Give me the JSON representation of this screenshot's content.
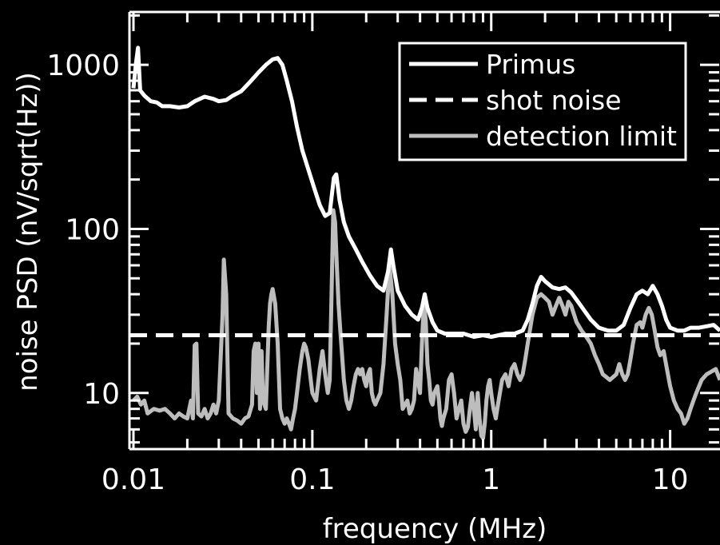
{
  "chart_data": {
    "type": "line",
    "title": "",
    "xlabel": "frequency (MHz)",
    "ylabel": "noise PSD (nV/sqrt(Hz))",
    "xscale": "log",
    "yscale": "log",
    "xlim": [
      0.0095,
      19
    ],
    "ylim": [
      4.55,
      2100
    ],
    "grid": false,
    "legend_position": "top-right",
    "x_tick_labels": [
      {
        "value": 0.01,
        "label": "0.01"
      },
      {
        "value": 0.1,
        "label": "0.1"
      },
      {
        "value": 1,
        "label": "1"
      },
      {
        "value": 10,
        "label": "10"
      }
    ],
    "y_tick_labels": [
      {
        "value": 10,
        "label": "10"
      },
      {
        "value": 100,
        "label": "100"
      },
      {
        "value": 1000,
        "label": "1000"
      }
    ],
    "series": [
      {
        "name": "Primus",
        "style": "solid",
        "color": "#ffffff",
        "points": [
          [
            0.01,
            720
          ],
          [
            0.0103,
            1000
          ],
          [
            0.0106,
            1270
          ],
          [
            0.0109,
            700
          ],
          [
            0.0115,
            650
          ],
          [
            0.0125,
            600
          ],
          [
            0.0135,
            590
          ],
          [
            0.0145,
            560
          ],
          [
            0.016,
            560
          ],
          [
            0.018,
            550
          ],
          [
            0.02,
            560
          ],
          [
            0.022,
            600
          ],
          [
            0.025,
            640
          ],
          [
            0.028,
            620
          ],
          [
            0.03,
            600
          ],
          [
            0.033,
            610
          ],
          [
            0.036,
            650
          ],
          [
            0.04,
            690
          ],
          [
            0.045,
            790
          ],
          [
            0.05,
            900
          ],
          [
            0.055,
            1000
          ],
          [
            0.06,
            1080
          ],
          [
            0.064,
            1100
          ],
          [
            0.068,
            1000
          ],
          [
            0.072,
            800
          ],
          [
            0.077,
            600
          ],
          [
            0.082,
            420
          ],
          [
            0.088,
            300
          ],
          [
            0.095,
            230
          ],
          [
            0.102,
            180
          ],
          [
            0.11,
            140
          ],
          [
            0.118,
            120
          ],
          [
            0.125,
            125
          ],
          [
            0.132,
            205
          ],
          [
            0.136,
            215
          ],
          [
            0.142,
            150
          ],
          [
            0.15,
            110
          ],
          [
            0.16,
            90
          ],
          [
            0.175,
            75
          ],
          [
            0.19,
            63
          ],
          [
            0.21,
            52
          ],
          [
            0.23,
            45
          ],
          [
            0.25,
            42
          ],
          [
            0.265,
            55
          ],
          [
            0.275,
            75
          ],
          [
            0.285,
            58
          ],
          [
            0.3,
            42
          ],
          [
            0.33,
            34
          ],
          [
            0.36,
            30
          ],
          [
            0.39,
            28
          ],
          [
            0.41,
            33
          ],
          [
            0.425,
            40
          ],
          [
            0.44,
            33
          ],
          [
            0.47,
            27
          ],
          [
            0.5,
            24
          ],
          [
            0.55,
            23
          ],
          [
            0.62,
            23
          ],
          [
            0.7,
            23
          ],
          [
            0.8,
            22
          ],
          [
            0.9,
            22.5
          ],
          [
            1.0,
            22
          ],
          [
            1.1,
            22.5
          ],
          [
            1.2,
            23
          ],
          [
            1.35,
            23
          ],
          [
            1.5,
            24
          ],
          [
            1.6,
            28
          ],
          [
            1.7,
            35
          ],
          [
            1.8,
            45
          ],
          [
            1.9,
            51
          ],
          [
            2.0,
            48
          ],
          [
            2.2,
            44
          ],
          [
            2.4,
            43
          ],
          [
            2.6,
            44
          ],
          [
            2.8,
            41
          ],
          [
            3.0,
            37
          ],
          [
            3.3,
            32
          ],
          [
            3.6,
            28
          ],
          [
            4.0,
            25
          ],
          [
            4.5,
            24
          ],
          [
            5.0,
            24
          ],
          [
            5.5,
            26
          ],
          [
            6.0,
            33
          ],
          [
            6.5,
            40
          ],
          [
            7.0,
            42
          ],
          [
            7.5,
            40
          ],
          [
            8.0,
            45
          ],
          [
            8.5,
            40
          ],
          [
            9.0,
            34
          ],
          [
            9.5,
            28
          ],
          [
            10.0,
            25
          ],
          [
            11.0,
            24
          ],
          [
            12.0,
            24
          ],
          [
            13.0,
            25
          ],
          [
            14.5,
            25
          ],
          [
            16.0,
            25.5
          ],
          [
            17.5,
            26
          ],
          [
            19.0,
            24
          ]
        ]
      },
      {
        "name": "shot noise",
        "style": "dashed",
        "color": "#ffffff",
        "points": [
          [
            0.0095,
            22.5
          ],
          [
            19.0,
            22.5
          ]
        ]
      },
      {
        "name": "detection limit",
        "style": "solid",
        "color": "#bdbdbd",
        "points": [
          [
            0.01,
            9
          ],
          [
            0.0105,
            9.5
          ],
          [
            0.011,
            8.5
          ],
          [
            0.0115,
            9
          ],
          [
            0.012,
            7.5
          ],
          [
            0.013,
            8
          ],
          [
            0.014,
            7.8
          ],
          [
            0.015,
            8
          ],
          [
            0.016,
            7.5
          ],
          [
            0.017,
            7
          ],
          [
            0.018,
            7.5
          ],
          [
            0.019,
            7.2
          ],
          [
            0.02,
            7
          ],
          [
            0.021,
            9
          ],
          [
            0.0215,
            7
          ],
          [
            0.022,
            19.5
          ],
          [
            0.0225,
            20
          ],
          [
            0.023,
            7.5
          ],
          [
            0.024,
            7.2
          ],
          [
            0.025,
            8
          ],
          [
            0.026,
            7
          ],
          [
            0.027,
            7.5
          ],
          [
            0.028,
            8.5
          ],
          [
            0.029,
            7.5
          ],
          [
            0.03,
            9
          ],
          [
            0.0315,
            30
          ],
          [
            0.032,
            65
          ],
          [
            0.033,
            40
          ],
          [
            0.034,
            7.5
          ],
          [
            0.036,
            7
          ],
          [
            0.038,
            6.8
          ],
          [
            0.04,
            6.5
          ],
          [
            0.042,
            7
          ],
          [
            0.044,
            7.2
          ],
          [
            0.046,
            8.5
          ],
          [
            0.047,
            18
          ],
          [
            0.048,
            20
          ],
          [
            0.049,
            10
          ],
          [
            0.05,
            20
          ],
          [
            0.051,
            8
          ],
          [
            0.052,
            18
          ],
          [
            0.053,
            9
          ],
          [
            0.055,
            8
          ],
          [
            0.057,
            25
          ],
          [
            0.058,
            35
          ],
          [
            0.059,
            40
          ],
          [
            0.06,
            43
          ],
          [
            0.062,
            35
          ],
          [
            0.064,
            20
          ],
          [
            0.066,
            8
          ],
          [
            0.068,
            7
          ],
          [
            0.07,
            6.5
          ],
          [
            0.072,
            7
          ],
          [
            0.074,
            6.5
          ],
          [
            0.076,
            6
          ],
          [
            0.078,
            7
          ],
          [
            0.08,
            8
          ],
          [
            0.082,
            10
          ],
          [
            0.085,
            14
          ],
          [
            0.088,
            18
          ],
          [
            0.09,
            20
          ],
          [
            0.092,
            19
          ],
          [
            0.095,
            16
          ],
          [
            0.098,
            12
          ],
          [
            0.1,
            10
          ],
          [
            0.105,
            9
          ],
          [
            0.11,
            14
          ],
          [
            0.114,
            18
          ],
          [
            0.118,
            13
          ],
          [
            0.122,
            10
          ],
          [
            0.125,
            12
          ],
          [
            0.128,
            40
          ],
          [
            0.131,
            130
          ],
          [
            0.134,
            110
          ],
          [
            0.137,
            60
          ],
          [
            0.14,
            35
          ],
          [
            0.143,
            25
          ],
          [
            0.146,
            18
          ],
          [
            0.15,
            12
          ],
          [
            0.155,
            9
          ],
          [
            0.16,
            8
          ],
          [
            0.165,
            9
          ],
          [
            0.17,
            11
          ],
          [
            0.175,
            13
          ],
          [
            0.18,
            14
          ],
          [
            0.185,
            13
          ],
          [
            0.19,
            14
          ],
          [
            0.195,
            12
          ],
          [
            0.2,
            11
          ],
          [
            0.205,
            13
          ],
          [
            0.21,
            14
          ],
          [
            0.215,
            10
          ],
          [
            0.22,
            9
          ],
          [
            0.225,
            8.5
          ],
          [
            0.23,
            9
          ],
          [
            0.24,
            10
          ],
          [
            0.25,
            15
          ],
          [
            0.26,
            30
          ],
          [
            0.27,
            60
          ],
          [
            0.28,
            40
          ],
          [
            0.29,
            20
          ],
          [
            0.3,
            15
          ],
          [
            0.31,
            12
          ],
          [
            0.32,
            8
          ],
          [
            0.33,
            8.5
          ],
          [
            0.34,
            9
          ],
          [
            0.35,
            7.5
          ],
          [
            0.36,
            8
          ],
          [
            0.37,
            9
          ],
          [
            0.38,
            14
          ],
          [
            0.39,
            12
          ],
          [
            0.4,
            10
          ],
          [
            0.41,
            20
          ],
          [
            0.42,
            35
          ],
          [
            0.43,
            28
          ],
          [
            0.44,
            15
          ],
          [
            0.45,
            12
          ],
          [
            0.46,
            9
          ],
          [
            0.47,
            8.5
          ],
          [
            0.48,
            10
          ],
          [
            0.5,
            11
          ],
          [
            0.51,
            9
          ],
          [
            0.52,
            7
          ],
          [
            0.53,
            6.3
          ],
          [
            0.54,
            7
          ],
          [
            0.56,
            8
          ],
          [
            0.58,
            12
          ],
          [
            0.6,
            13
          ],
          [
            0.62,
            10
          ],
          [
            0.64,
            7
          ],
          [
            0.66,
            8
          ],
          [
            0.68,
            9
          ],
          [
            0.7,
            6.5
          ],
          [
            0.72,
            5.8
          ],
          [
            0.74,
            6.2
          ],
          [
            0.76,
            8
          ],
          [
            0.78,
            10
          ],
          [
            0.8,
            8
          ],
          [
            0.82,
            6
          ],
          [
            0.84,
            10
          ],
          [
            0.86,
            7
          ],
          [
            0.88,
            5.5
          ],
          [
            0.9,
            5.3
          ],
          [
            0.92,
            6.5
          ],
          [
            0.94,
            9
          ],
          [
            0.96,
            11
          ],
          [
            0.98,
            12
          ],
          [
            1.0,
            10
          ],
          [
            1.03,
            8
          ],
          [
            1.06,
            7
          ],
          [
            1.1,
            9
          ],
          [
            1.15,
            12
          ],
          [
            1.2,
            13
          ],
          [
            1.25,
            11
          ],
          [
            1.3,
            14
          ],
          [
            1.35,
            15
          ],
          [
            1.4,
            13
          ],
          [
            1.45,
            12
          ],
          [
            1.5,
            13
          ],
          [
            1.55,
            16
          ],
          [
            1.6,
            20
          ],
          [
            1.7,
            30
          ],
          [
            1.8,
            38
          ],
          [
            1.9,
            40
          ],
          [
            2.0,
            38
          ],
          [
            2.1,
            36
          ],
          [
            2.2,
            30
          ],
          [
            2.3,
            34
          ],
          [
            2.4,
            38
          ],
          [
            2.5,
            34
          ],
          [
            2.6,
            30
          ],
          [
            2.7,
            36
          ],
          [
            2.8,
            34
          ],
          [
            3.0,
            27
          ],
          [
            3.2,
            24
          ],
          [
            3.4,
            22
          ],
          [
            3.6,
            20
          ],
          [
            3.8,
            17
          ],
          [
            4.0,
            15
          ],
          [
            4.2,
            13
          ],
          [
            4.4,
            12.5
          ],
          [
            4.6,
            12
          ],
          [
            4.8,
            12.5
          ],
          [
            5.0,
            13
          ],
          [
            5.2,
            15
          ],
          [
            5.4,
            13
          ],
          [
            5.6,
            12
          ],
          [
            5.8,
            13
          ],
          [
            6.0,
            16
          ],
          [
            6.2,
            20
          ],
          [
            6.5,
            26
          ],
          [
            6.8,
            27
          ],
          [
            7.0,
            25
          ],
          [
            7.3,
            30
          ],
          [
            7.6,
            33
          ],
          [
            7.9,
            30
          ],
          [
            8.2,
            24
          ],
          [
            8.5,
            19
          ],
          [
            8.8,
            17
          ],
          [
            9.2,
            18
          ],
          [
            9.6,
            14
          ],
          [
            10.0,
            11
          ],
          [
            10.5,
            9
          ],
          [
            11.0,
            8
          ],
          [
            11.5,
            7.5
          ],
          [
            12.0,
            6.5
          ],
          [
            12.5,
            7
          ],
          [
            13.0,
            8
          ],
          [
            13.5,
            9
          ],
          [
            14.0,
            10
          ],
          [
            15.0,
            12
          ],
          [
            16.0,
            13
          ],
          [
            17.0,
            13.5
          ],
          [
            18.0,
            14
          ],
          [
            19.0,
            12
          ]
        ]
      }
    ]
  }
}
